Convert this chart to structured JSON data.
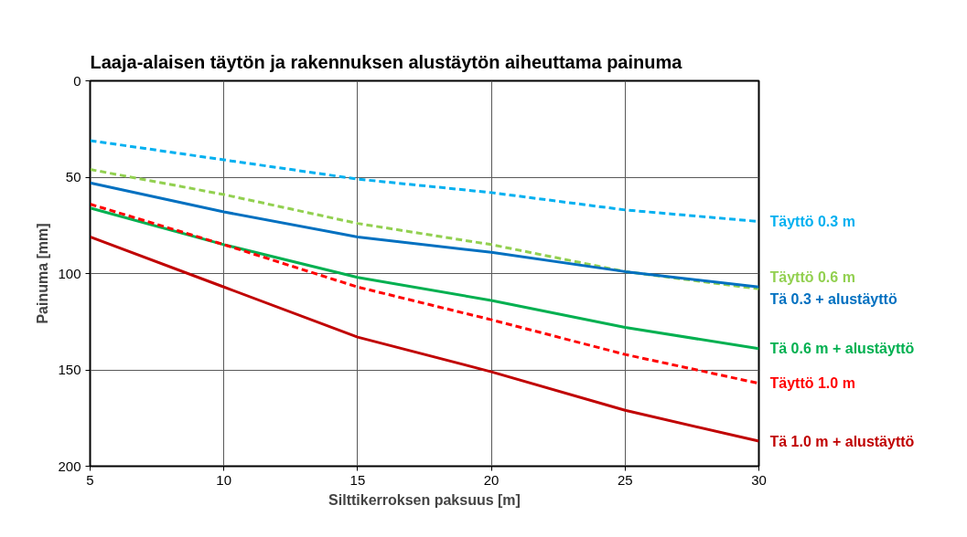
{
  "chart_data": {
    "type": "line",
    "title": "Laaja-alaisen täytön ja rakennuksen alustäytön aiheuttama painuma",
    "xlabel": "Silttikerroksen paksuus [m]",
    "ylabel": "Painuma [mm]",
    "x": [
      5,
      10,
      15,
      20,
      25,
      30
    ],
    "xlim": [
      5,
      30
    ],
    "xticks": [
      5,
      10,
      15,
      20,
      25,
      30
    ],
    "ylim": [
      200,
      0
    ],
    "yticks": [
      0,
      50,
      100,
      150,
      200
    ],
    "grid": true,
    "marker": "none",
    "series": [
      {
        "name": "Täyttö 0.3 m",
        "color": "#00b0f0",
        "line_style": "dashed",
        "values": [
          31,
          41,
          51,
          58,
          67,
          73
        ]
      },
      {
        "name": "Täyttö 0.6 m",
        "color": "#92d050",
        "line_style": "dashed",
        "values": [
          46,
          59,
          74,
          85,
          99,
          108
        ]
      },
      {
        "name": "Tä 0.3 + alustäyttö",
        "color": "#0070c0",
        "line_style": "solid",
        "values": [
          53,
          68,
          81,
          89,
          99,
          107
        ]
      },
      {
        "name": "Tä 0.6 m + alustäyttö",
        "color": "#00b050",
        "line_style": "solid",
        "values": [
          66,
          85,
          102,
          114,
          128,
          139
        ]
      },
      {
        "name": "Täyttö 1.0 m",
        "color": "#ff0000",
        "line_style": "dashed",
        "values": [
          64,
          85,
          107,
          124,
          142,
          157
        ]
      },
      {
        "name": "Tä 1.0 m + alustäyttö",
        "color": "#c00000",
        "line_style": "solid",
        "values": [
          81,
          107,
          133,
          151,
          171,
          187
        ]
      }
    ]
  }
}
